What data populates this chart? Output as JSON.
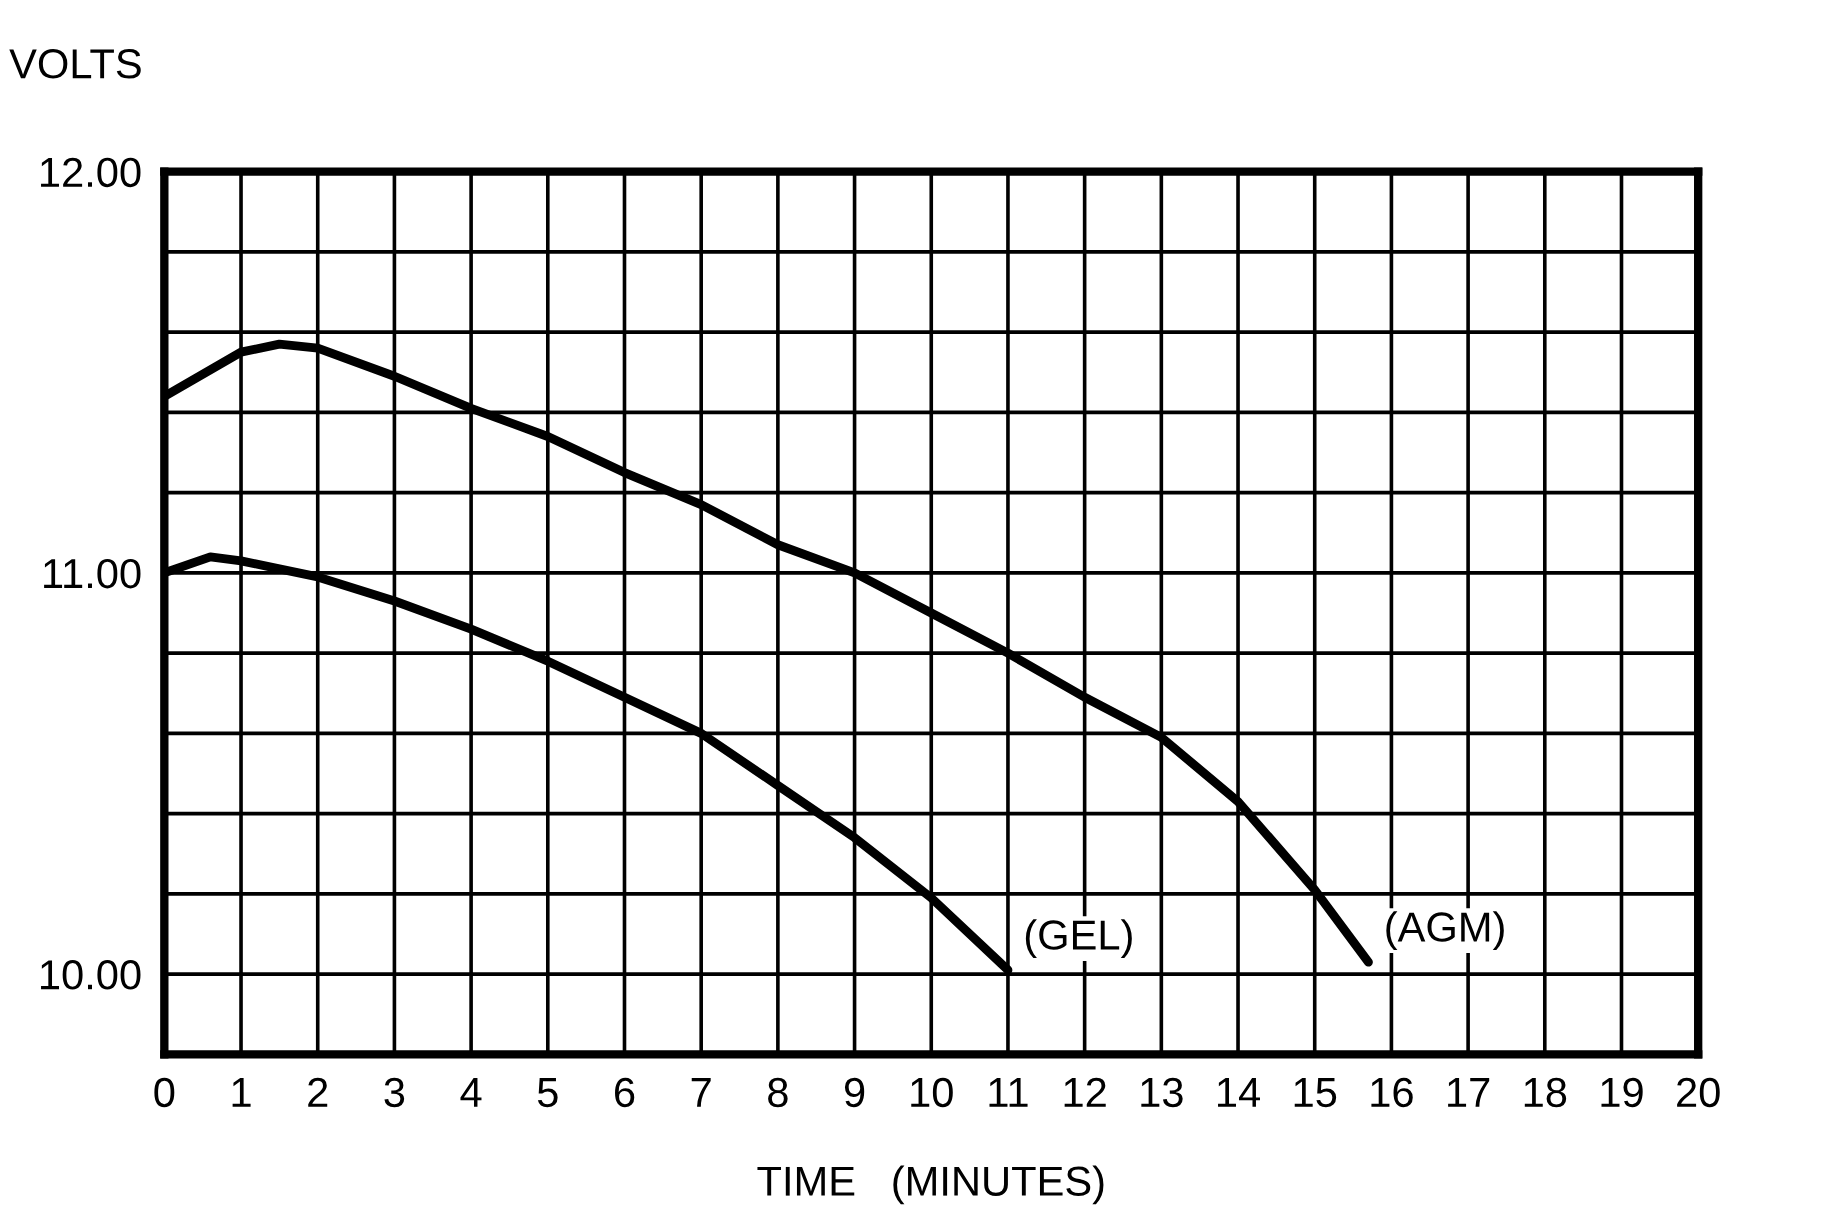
{
  "chart_data": {
    "type": "line",
    "ylabel": "VOLTS",
    "xlabel": "TIME   (MINUTES)",
    "xlim": [
      0,
      20
    ],
    "xticks": [
      0,
      1,
      2,
      3,
      4,
      5,
      6,
      7,
      8,
      9,
      10,
      11,
      12,
      13,
      14,
      15,
      16,
      17,
      18,
      19,
      20
    ],
    "ylim": [
      9.8,
      12.0
    ],
    "yticks": [
      {
        "value": 9.8,
        "label": null
      },
      {
        "value": 10.0,
        "label": "10.00"
      },
      {
        "value": 10.2,
        "label": null
      },
      {
        "value": 10.4,
        "label": null
      },
      {
        "value": 10.6,
        "label": null
      },
      {
        "value": 10.8,
        "label": null
      },
      {
        "value": 11.0,
        "label": "11.00"
      },
      {
        "value": 11.2,
        "label": null
      },
      {
        "value": 11.4,
        "label": null
      },
      {
        "value": 11.6,
        "label": null
      },
      {
        "value": 11.8,
        "label": null
      },
      {
        "value": 12.0,
        "label": "12.00"
      }
    ],
    "grid": true,
    "legend": false,
    "marker": "none",
    "line_style": "solid",
    "series": [
      {
        "name": "(GEL)",
        "color": "#000000",
        "x": [
          0,
          0.6,
          1,
          1.5,
          2,
          3,
          4,
          5,
          6,
          7,
          8,
          9,
          10,
          11
        ],
        "values": [
          11.0,
          11.04,
          11.03,
          11.01,
          10.99,
          10.93,
          10.86,
          10.78,
          10.69,
          10.6,
          10.47,
          10.34,
          10.19,
          10.01
        ]
      },
      {
        "name": "(AGM)",
        "color": "#000000",
        "x": [
          0,
          1,
          1.5,
          2,
          3,
          4,
          5,
          6,
          7,
          8,
          9,
          10,
          11,
          12,
          13,
          14,
          15,
          15.7
        ],
        "values": [
          11.44,
          11.55,
          11.57,
          11.56,
          11.49,
          11.41,
          11.34,
          11.25,
          11.17,
          11.07,
          11.0,
          10.9,
          10.8,
          10.69,
          10.59,
          10.43,
          10.21,
          10.03
        ]
      }
    ]
  }
}
